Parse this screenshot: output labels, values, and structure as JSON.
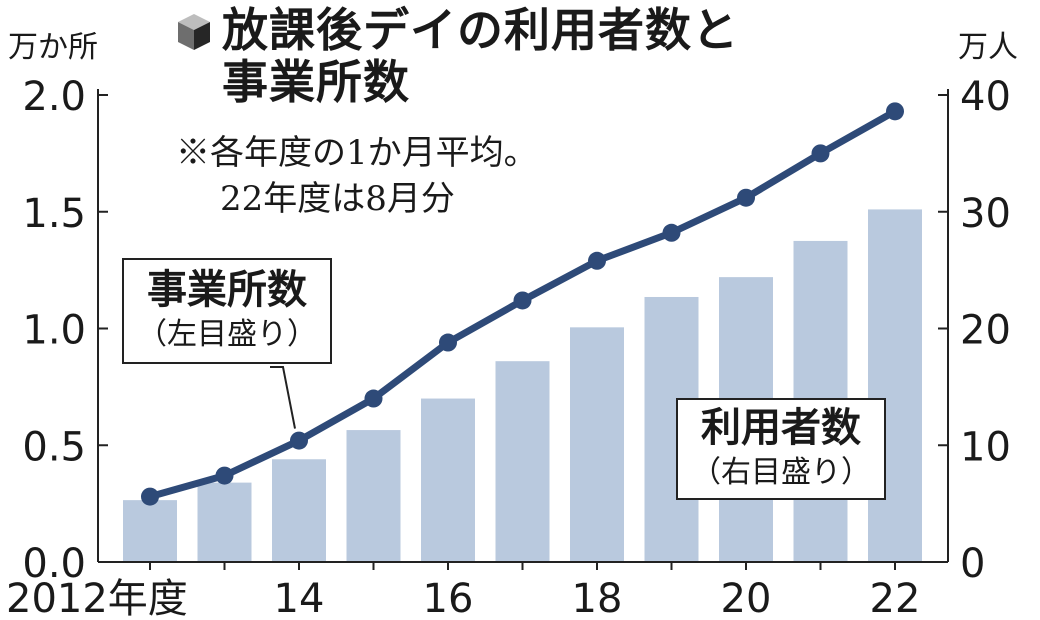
{
  "title_lines": [
    "放課後デイの利用者数と",
    "事業所数"
  ],
  "note_lines": [
    "※各年度の1か月平均。",
    "22年度は8月分"
  ],
  "units": {
    "left": "万か所",
    "right": "万人"
  },
  "callouts": {
    "offices": {
      "main": "事業所数",
      "sub": "（左目盛り）"
    },
    "users": {
      "main": "利用者数",
      "sub": "（右目盛り）"
    }
  },
  "colors": {
    "bar": "#b9c9de",
    "line": "#2e4a78",
    "text": "#1a1a1a"
  },
  "chart_data": {
    "type": "bar+line",
    "x": [
      2012,
      2013,
      2014,
      2015,
      2016,
      2017,
      2018,
      2019,
      2020,
      2021,
      2022
    ],
    "x_tick_labels": [
      "2012年度",
      "14",
      "16",
      "18",
      "20",
      "22"
    ],
    "x_tick_years": [
      2012,
      2014,
      2016,
      2018,
      2020,
      2022
    ],
    "left_axis": {
      "unit": "万か所",
      "range": [
        0,
        2.0
      ],
      "ticks": [
        "0.0",
        "0.5",
        "1.0",
        "1.5",
        "2.0"
      ]
    },
    "right_axis": {
      "unit": "万人",
      "range": [
        0,
        40
      ],
      "ticks": [
        "0",
        "10",
        "20",
        "30",
        "40"
      ]
    },
    "series": [
      {
        "name": "利用者数",
        "type": "bar",
        "axis": "right",
        "values": [
          5.3,
          6.8,
          8.8,
          11.3,
          14.0,
          17.2,
          20.1,
          22.7,
          24.4,
          27.5,
          30.2
        ]
      },
      {
        "name": "事業所数",
        "type": "line",
        "axis": "left",
        "values": [
          0.28,
          0.37,
          0.52,
          0.7,
          0.94,
          1.12,
          1.29,
          1.41,
          1.56,
          1.75,
          1.93
        ]
      }
    ],
    "grid": false
  }
}
